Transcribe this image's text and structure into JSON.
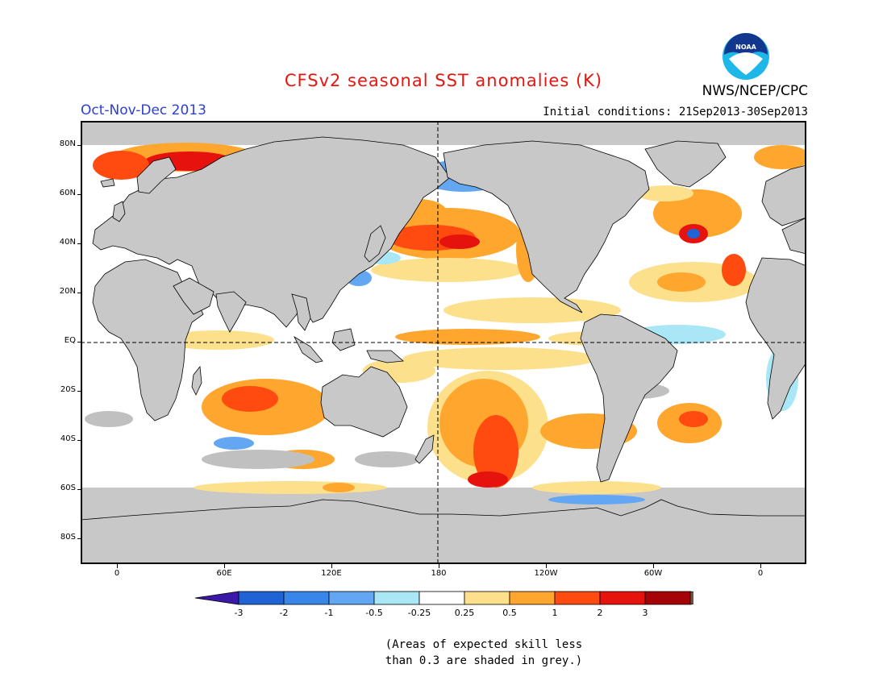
{
  "header": {
    "title": "CFSv2 seasonal SST anomalies (K)",
    "period": "Oct-Nov-Dec 2013",
    "agency": "NWS/NCEP/CPC",
    "initial_conditions": "Initial conditions: 21Sep2013-30Sep2013",
    "logo_text": "NOAA"
  },
  "map": {
    "lat_labels": [
      "80N",
      "60N",
      "40N",
      "20N",
      "EQ",
      "20S",
      "40S",
      "60S",
      "80S"
    ],
    "lon_labels": [
      "0",
      "60E",
      "120E",
      "180",
      "120W",
      "60W",
      "0"
    ],
    "projection": "cylindrical-equidistant",
    "land_color": "#c8c8c8",
    "low_skill_color": "#c0c0c0"
  },
  "legend": {
    "ticks": [
      "-3",
      "-2",
      "-1",
      "-0.5",
      "-0.25",
      "0.25",
      "0.5",
      "1",
      "2",
      "3"
    ],
    "colors": [
      "#3a19a8",
      "#1f63d6",
      "#3886ea",
      "#63a6f2",
      "#a9e6f6",
      "#ffffff",
      "#fde08c",
      "#ffa62e",
      "#ff4a10",
      "#e5120e",
      "#a50306",
      "#7a4e3c"
    ]
  },
  "note": {
    "line1": "(Areas of expected skill less",
    "line2": "than 0.3 are shaded in grey.)"
  },
  "colors": {
    "title": "#e8150f",
    "period": "#2c3fd3"
  }
}
